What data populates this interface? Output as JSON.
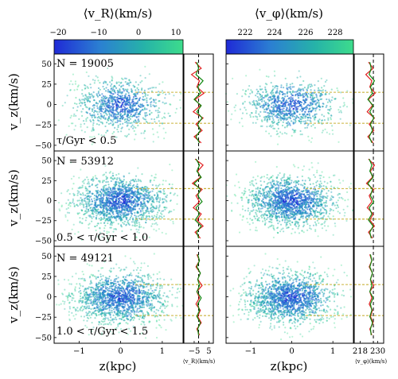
{
  "chart_data": {
    "type": "scatter",
    "colorbars": [
      {
        "label": "⟨v_R⟩(km/s)",
        "ticks": [
          "−20",
          "−10",
          "0",
          "10"
        ],
        "range": [
          -24,
          12
        ],
        "colors": [
          "#1f2ad6",
          "#2b7fd2",
          "#26b3a8",
          "#3ddc8c"
        ]
      },
      {
        "label": "⟨v_φ⟩(km/s)",
        "ticks": [
          "222",
          "224",
          "226",
          "228"
        ],
        "range": [
          220.5,
          229.5
        ],
        "colors": [
          "#1f2ad6",
          "#2b7fd2",
          "#26b3a8",
          "#3ddc8c"
        ]
      }
    ],
    "y_axis": {
      "label": "v_z(km/s)",
      "ticks": [
        "50",
        "25",
        "0",
        "−25",
        "−50"
      ],
      "ylim": [
        -55,
        60
      ]
    },
    "x_axis": {
      "label": "z(kpc)",
      "ticks": [
        "−1",
        "0",
        "1"
      ],
      "xlim": [
        -1.6,
        1.5
      ]
    },
    "rows": [
      {
        "n_label": "N = 19005",
        "age_label": "τ/Gyr < 0.5"
      },
      {
        "n_label": "N = 53912",
        "age_label": "0.5 < τ/Gyr < 1.0"
      },
      {
        "n_label": "N = 49121",
        "age_label": "1.0 < τ/Gyr < 1.5"
      }
    ],
    "side_panels": [
      {
        "xlabel": "⟨v_R⟩(km/s)",
        "ticks": [
          "−5",
          "5"
        ],
        "xlim": [
          -12,
          8
        ],
        "dashed_at": -2
      },
      {
        "xlabel": "⟨v_φ⟩(km/s)",
        "ticks": [
          "218",
          "230"
        ],
        "xlim": [
          214,
          234
        ],
        "dashed_at": 227
      }
    ],
    "series": [
      {
        "color": "#e02020"
      },
      {
        "color": "#118811"
      }
    ],
    "yellow_lines": [
      15,
      -23
    ]
  }
}
